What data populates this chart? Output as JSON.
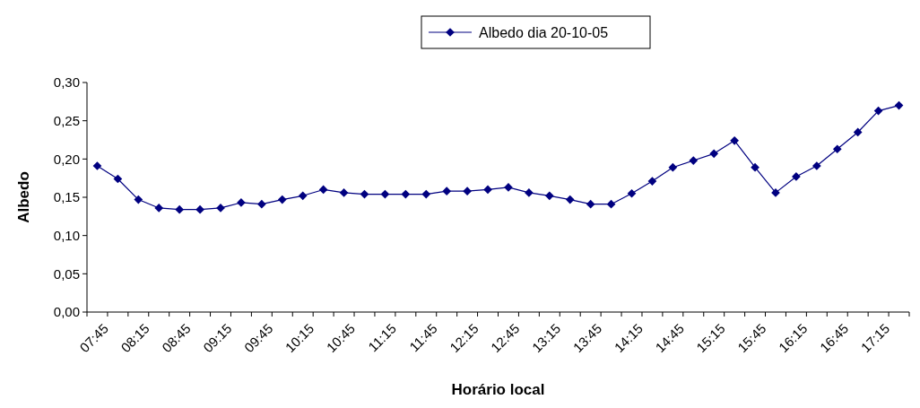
{
  "chart_data": {
    "type": "line",
    "xlabel": "Horário local",
    "ylabel": "Albedo",
    "categories": [
      "07:45",
      null,
      "08:15",
      null,
      "08:45",
      null,
      "09:15",
      null,
      "09:45",
      null,
      "10:15",
      null,
      "10:45",
      null,
      "11:15",
      null,
      "11:45",
      null,
      "12:15",
      null,
      "12:45",
      null,
      "13:15",
      null,
      "13:45",
      null,
      "14:15",
      null,
      "14:45",
      null,
      "15:15",
      null,
      "15:45",
      null,
      "16:15",
      null,
      "16:45",
      null,
      "17:15",
      null
    ],
    "series": [
      {
        "name": "Albedo dia 20-10-05",
        "color": "#000080",
        "values": [
          0.191,
          0.174,
          0.147,
          0.136,
          0.134,
          0.134,
          0.136,
          0.143,
          0.141,
          0.147,
          0.152,
          0.16,
          0.156,
          0.154,
          0.154,
          0.154,
          0.154,
          0.158,
          0.158,
          0.16,
          0.163,
          0.156,
          0.152,
          0.147,
          0.141,
          0.141,
          0.155,
          0.171,
          0.189,
          0.198,
          0.207,
          0.224,
          0.189,
          0.156,
          0.177,
          0.191,
          0.213,
          0.235,
          0.263,
          0.27
        ]
      }
    ],
    "ylim": [
      0,
      0.3
    ],
    "yticks": [
      {
        "value": 0,
        "label": "0,00"
      },
      {
        "value": 0.05,
        "label": "0,05"
      },
      {
        "value": 0.1,
        "label": "0,10"
      },
      {
        "value": 0.15,
        "label": "0,15"
      },
      {
        "value": 0.2,
        "label": "0,20"
      },
      {
        "value": 0.25,
        "label": "0,25"
      },
      {
        "value": 0.3,
        "label": "0,30"
      }
    ],
    "grid": false,
    "legend": "top",
    "marker": "diamond",
    "line_style": "solid"
  }
}
